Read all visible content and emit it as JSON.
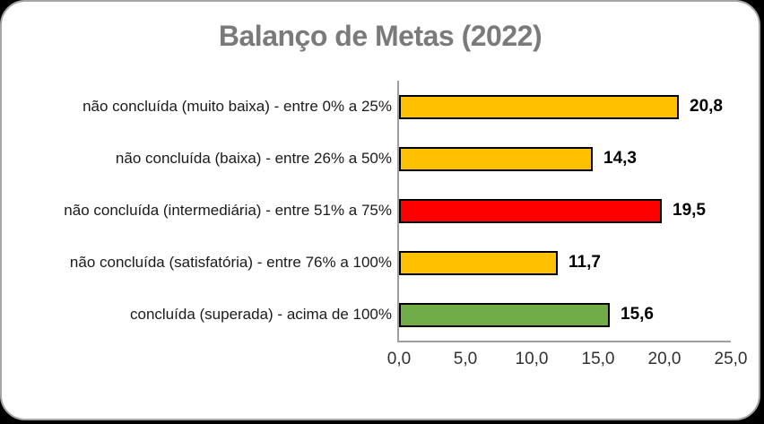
{
  "card": {
    "background": "#ffffff",
    "border_color": "#a6a6a6",
    "outer_background": "#000000"
  },
  "chart_data": {
    "type": "bar",
    "orientation": "horizontal",
    "title": "Balanço de Metas (2022)",
    "title_color": "#7a7a7a",
    "categories": [
      "não concluída (muito baixa) - entre 0% a 25%",
      "não concluída (baixa) - entre 26% a 50%",
      "não concluída (intermediária) - entre 51% a 75%",
      "não concluída (satisfatória) - entre 76% a 100%",
      "concluída (superada) - acima de 100%"
    ],
    "values": [
      20.8,
      14.3,
      19.5,
      11.7,
      15.6
    ],
    "value_labels": [
      "20,8",
      "14,3",
      "19,5",
      "11,7",
      "15,6"
    ],
    "bar_colors": [
      "#FFC000",
      "#FFC000",
      "#FF0000",
      "#FFC000",
      "#70AD47"
    ],
    "bar_border_color": "#000000",
    "xlabel": "",
    "ylabel": "",
    "xlim": [
      0,
      25
    ],
    "xticks": [
      0,
      5,
      10,
      15,
      20,
      25
    ],
    "xtick_labels": [
      "0,0",
      "5,0",
      "10,0",
      "15,0",
      "20,0",
      "25,0"
    ],
    "grid": false,
    "legend": "none",
    "axis_line_color": "#9e9e9e"
  }
}
